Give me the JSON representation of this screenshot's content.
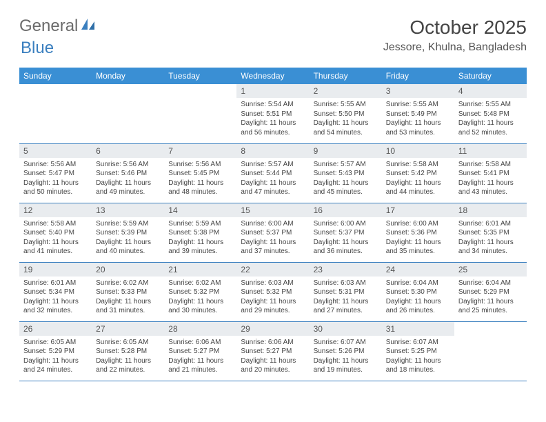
{
  "brand": {
    "part1": "General",
    "part2": "Blue"
  },
  "title": "October 2025",
  "location": "Jessore, Khulna, Bangladesh",
  "colors": {
    "header_bg": "#3a8fd4",
    "header_fg": "#ffffff",
    "daynum_bg": "#e9ecef",
    "rule": "#3a7fbf",
    "text": "#444444"
  },
  "day_headers": [
    "Sunday",
    "Monday",
    "Tuesday",
    "Wednesday",
    "Thursday",
    "Friday",
    "Saturday"
  ],
  "weeks": [
    [
      null,
      null,
      null,
      {
        "n": "1",
        "sr": "5:54 AM",
        "ss": "5:51 PM",
        "dl": "11 hours and 56 minutes."
      },
      {
        "n": "2",
        "sr": "5:55 AM",
        "ss": "5:50 PM",
        "dl": "11 hours and 54 minutes."
      },
      {
        "n": "3",
        "sr": "5:55 AM",
        "ss": "5:49 PM",
        "dl": "11 hours and 53 minutes."
      },
      {
        "n": "4",
        "sr": "5:55 AM",
        "ss": "5:48 PM",
        "dl": "11 hours and 52 minutes."
      }
    ],
    [
      {
        "n": "5",
        "sr": "5:56 AM",
        "ss": "5:47 PM",
        "dl": "11 hours and 50 minutes."
      },
      {
        "n": "6",
        "sr": "5:56 AM",
        "ss": "5:46 PM",
        "dl": "11 hours and 49 minutes."
      },
      {
        "n": "7",
        "sr": "5:56 AM",
        "ss": "5:45 PM",
        "dl": "11 hours and 48 minutes."
      },
      {
        "n": "8",
        "sr": "5:57 AM",
        "ss": "5:44 PM",
        "dl": "11 hours and 47 minutes."
      },
      {
        "n": "9",
        "sr": "5:57 AM",
        "ss": "5:43 PM",
        "dl": "11 hours and 45 minutes."
      },
      {
        "n": "10",
        "sr": "5:58 AM",
        "ss": "5:42 PM",
        "dl": "11 hours and 44 minutes."
      },
      {
        "n": "11",
        "sr": "5:58 AM",
        "ss": "5:41 PM",
        "dl": "11 hours and 43 minutes."
      }
    ],
    [
      {
        "n": "12",
        "sr": "5:58 AM",
        "ss": "5:40 PM",
        "dl": "11 hours and 41 minutes."
      },
      {
        "n": "13",
        "sr": "5:59 AM",
        "ss": "5:39 PM",
        "dl": "11 hours and 40 minutes."
      },
      {
        "n": "14",
        "sr": "5:59 AM",
        "ss": "5:38 PM",
        "dl": "11 hours and 39 minutes."
      },
      {
        "n": "15",
        "sr": "6:00 AM",
        "ss": "5:37 PM",
        "dl": "11 hours and 37 minutes."
      },
      {
        "n": "16",
        "sr": "6:00 AM",
        "ss": "5:37 PM",
        "dl": "11 hours and 36 minutes."
      },
      {
        "n": "17",
        "sr": "6:00 AM",
        "ss": "5:36 PM",
        "dl": "11 hours and 35 minutes."
      },
      {
        "n": "18",
        "sr": "6:01 AM",
        "ss": "5:35 PM",
        "dl": "11 hours and 34 minutes."
      }
    ],
    [
      {
        "n": "19",
        "sr": "6:01 AM",
        "ss": "5:34 PM",
        "dl": "11 hours and 32 minutes."
      },
      {
        "n": "20",
        "sr": "6:02 AM",
        "ss": "5:33 PM",
        "dl": "11 hours and 31 minutes."
      },
      {
        "n": "21",
        "sr": "6:02 AM",
        "ss": "5:32 PM",
        "dl": "11 hours and 30 minutes."
      },
      {
        "n": "22",
        "sr": "6:03 AM",
        "ss": "5:32 PM",
        "dl": "11 hours and 29 minutes."
      },
      {
        "n": "23",
        "sr": "6:03 AM",
        "ss": "5:31 PM",
        "dl": "11 hours and 27 minutes."
      },
      {
        "n": "24",
        "sr": "6:04 AM",
        "ss": "5:30 PM",
        "dl": "11 hours and 26 minutes."
      },
      {
        "n": "25",
        "sr": "6:04 AM",
        "ss": "5:29 PM",
        "dl": "11 hours and 25 minutes."
      }
    ],
    [
      {
        "n": "26",
        "sr": "6:05 AM",
        "ss": "5:29 PM",
        "dl": "11 hours and 24 minutes."
      },
      {
        "n": "27",
        "sr": "6:05 AM",
        "ss": "5:28 PM",
        "dl": "11 hours and 22 minutes."
      },
      {
        "n": "28",
        "sr": "6:06 AM",
        "ss": "5:27 PM",
        "dl": "11 hours and 21 minutes."
      },
      {
        "n": "29",
        "sr": "6:06 AM",
        "ss": "5:27 PM",
        "dl": "11 hours and 20 minutes."
      },
      {
        "n": "30",
        "sr": "6:07 AM",
        "ss": "5:26 PM",
        "dl": "11 hours and 19 minutes."
      },
      {
        "n": "31",
        "sr": "6:07 AM",
        "ss": "5:25 PM",
        "dl": "11 hours and 18 minutes."
      },
      null
    ]
  ],
  "labels": {
    "sunrise": "Sunrise:",
    "sunset": "Sunset:",
    "daylight": "Daylight:"
  }
}
